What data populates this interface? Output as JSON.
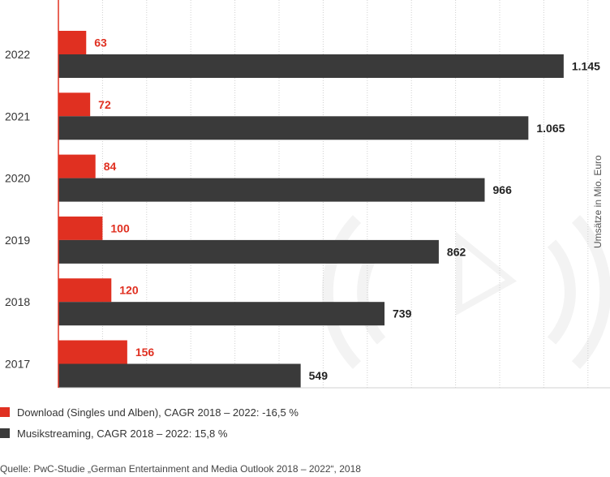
{
  "chart_data": {
    "type": "bar",
    "orientation": "horizontal",
    "categories": [
      "2022",
      "2021",
      "2020",
      "2019",
      "2018",
      "2017"
    ],
    "series": [
      {
        "name": "Download (Singles und Alben), CAGR 2018 – 2022: -16,5 %",
        "values": [
          63,
          72,
          84,
          100,
          120,
          156
        ],
        "labels": [
          "63",
          "72",
          "84",
          "100",
          "120",
          "156"
        ],
        "color": "#e03021"
      },
      {
        "name": "Musikstreaming, CAGR 2018 – 2022: 15,8 %",
        "values": [
          1145,
          1065,
          966,
          862,
          739,
          549
        ],
        "labels": [
          "1.145",
          "1.065",
          "966",
          "862",
          "739",
          "549"
        ],
        "color": "#3a3a3a"
      }
    ],
    "ylabel": "Umsätze in Mio. Euro",
    "xlim": [
      0,
      1250
    ],
    "grid": "vertical dotted lines",
    "legend_position": "bottom-left"
  },
  "source": "Quelle: PwC-Studie „German Entertainment and Media Outlook 2018 – 2022“, 2018",
  "colors": {
    "download": "#e03021",
    "streaming": "#3a3a3a",
    "grid": "#d0d0d0",
    "axis": "#e03021"
  }
}
